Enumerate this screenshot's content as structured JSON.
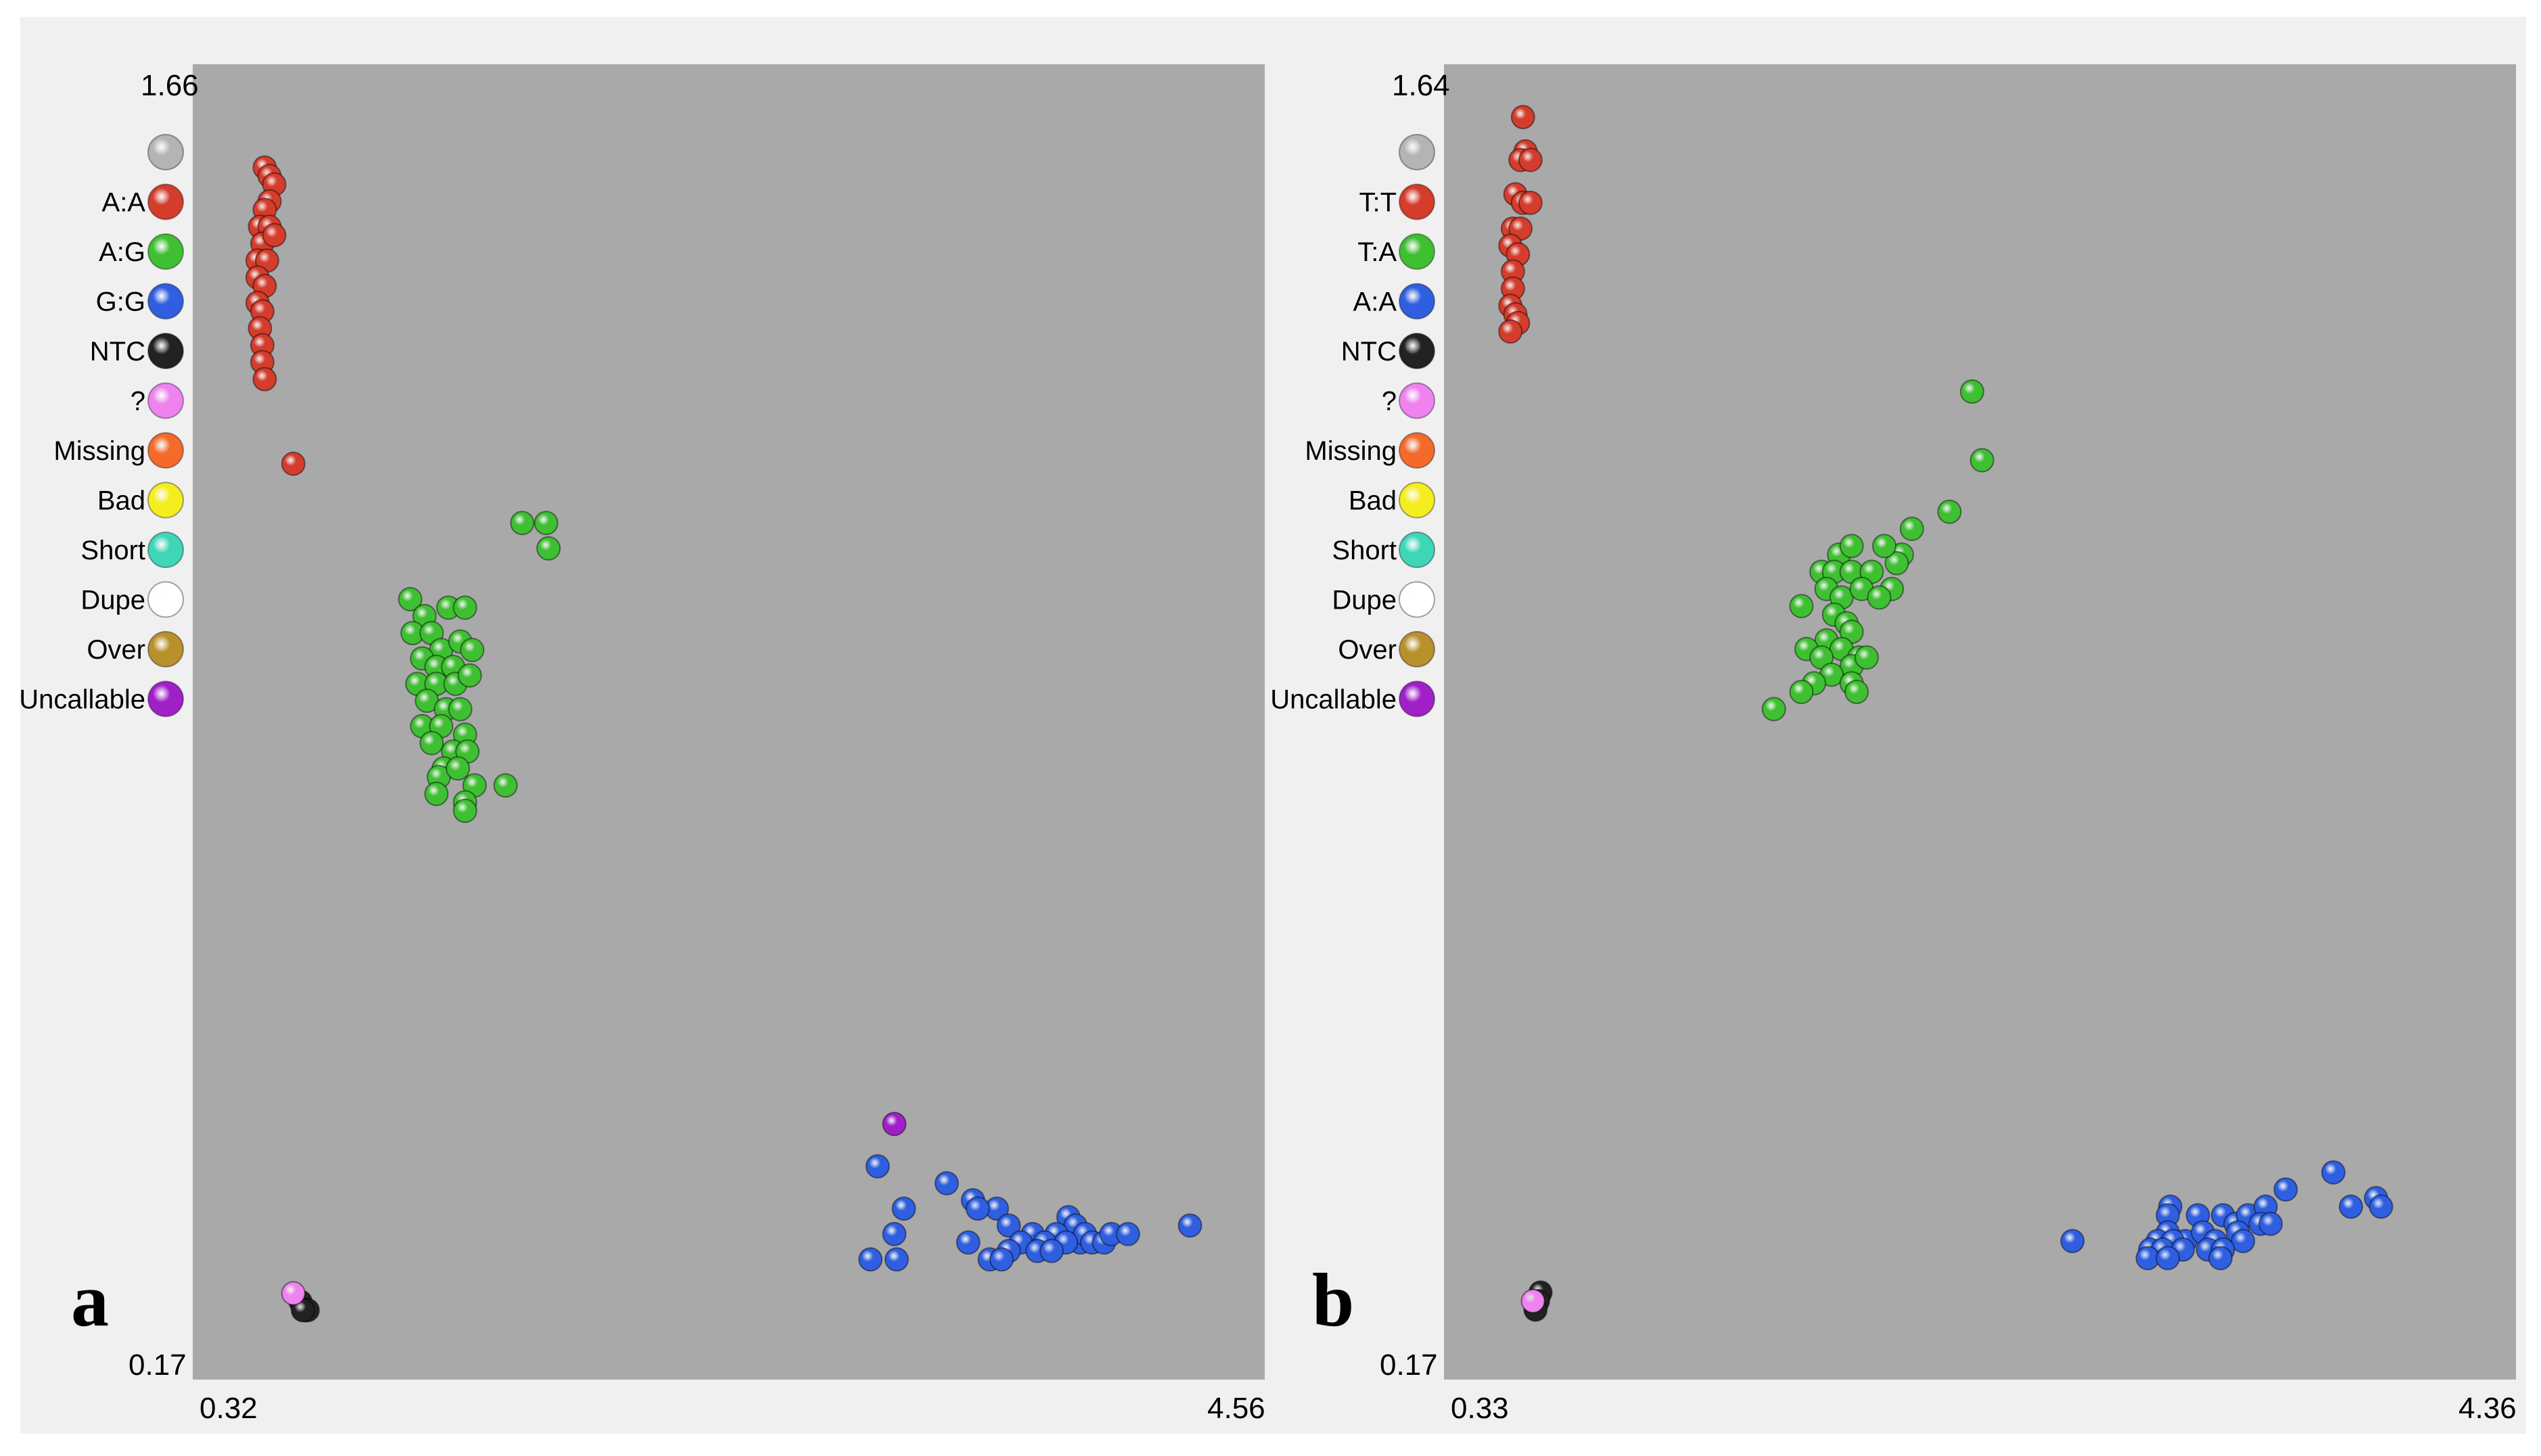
{
  "chart_data": [
    {
      "type": "scatter",
      "panel_label": "a",
      "x_range": [
        "0.32",
        "4.56"
      ],
      "y_range": [
        "0.17",
        "1.66"
      ],
      "xlim": [
        0.32,
        4.56
      ],
      "ylim": [
        0.17,
        1.66
      ],
      "legend": [
        {
          "label": "",
          "color": "#b4b4b4"
        },
        {
          "label": "A:A",
          "color": "#d43c2c"
        },
        {
          "label": "A:G",
          "color": "#3fbf32"
        },
        {
          "label": "G:G",
          "color": "#2f5fe0"
        },
        {
          "label": "NTC",
          "color": "#222222"
        },
        {
          "label": "?",
          "color": "#ee82ee"
        },
        {
          "label": "Missing",
          "color": "#f46a2a"
        },
        {
          "label": "Bad",
          "color": "#f4ee20"
        },
        {
          "label": "Short",
          "color": "#3ed6b6"
        },
        {
          "label": "Dupe",
          "color": "#ffffff"
        },
        {
          "label": "Over",
          "color": "#b8902c"
        },
        {
          "label": "Uncallable",
          "color": "#a020c8"
        }
      ],
      "series": [
        {
          "name": "A:A",
          "color": "#d43c2c",
          "points": [
            [
              0.48,
              1.57
            ],
            [
              0.5,
              1.56
            ],
            [
              0.52,
              1.55
            ],
            [
              0.5,
              1.53
            ],
            [
              0.48,
              1.52
            ],
            [
              0.46,
              1.5
            ],
            [
              0.5,
              1.5
            ],
            [
              0.47,
              1.48
            ],
            [
              0.52,
              1.49
            ],
            [
              0.45,
              1.46
            ],
            [
              0.49,
              1.46
            ],
            [
              0.45,
              1.44
            ],
            [
              0.48,
              1.43
            ],
            [
              0.45,
              1.41
            ],
            [
              0.47,
              1.4
            ],
            [
              0.46,
              1.38
            ],
            [
              0.47,
              1.36
            ],
            [
              0.47,
              1.34
            ],
            [
              0.48,
              1.32
            ],
            [
              0.6,
              1.22
            ]
          ]
        },
        {
          "name": "A:G",
          "color": "#3fbf32",
          "points": [
            [
              1.56,
              1.15
            ],
            [
              1.66,
              1.15
            ],
            [
              1.67,
              1.12
            ],
            [
              1.09,
              1.06
            ],
            [
              1.15,
              1.04
            ],
            [
              1.25,
              1.05
            ],
            [
              1.32,
              1.05
            ],
            [
              1.1,
              1.02
            ],
            [
              1.18,
              1.02
            ],
            [
              1.22,
              1.0
            ],
            [
              1.3,
              1.01
            ],
            [
              1.35,
              1.0
            ],
            [
              1.14,
              0.99
            ],
            [
              1.2,
              0.98
            ],
            [
              1.27,
              0.98
            ],
            [
              1.12,
              0.96
            ],
            [
              1.2,
              0.96
            ],
            [
              1.28,
              0.96
            ],
            [
              1.34,
              0.97
            ],
            [
              1.16,
              0.94
            ],
            [
              1.24,
              0.93
            ],
            [
              1.3,
              0.93
            ],
            [
              1.14,
              0.91
            ],
            [
              1.22,
              0.91
            ],
            [
              1.32,
              0.9
            ],
            [
              1.18,
              0.89
            ],
            [
              1.27,
              0.88
            ],
            [
              1.33,
              0.88
            ],
            [
              1.23,
              0.86
            ],
            [
              1.21,
              0.85
            ],
            [
              1.29,
              0.86
            ],
            [
              1.36,
              0.84
            ],
            [
              1.49,
              0.84
            ],
            [
              1.2,
              0.83
            ],
            [
              1.32,
              0.82
            ],
            [
              1.32,
              0.81
            ]
          ]
        },
        {
          "name": "G:G",
          "color": "#2f5fe0",
          "points": [
            [
              3.05,
              0.39
            ],
            [
              3.34,
              0.37
            ],
            [
              3.45,
              0.35
            ],
            [
              3.55,
              0.34
            ],
            [
              3.47,
              0.34
            ],
            [
              3.16,
              0.34
            ],
            [
              3.6,
              0.32
            ],
            [
              3.85,
              0.33
            ],
            [
              3.88,
              0.32
            ],
            [
              3.8,
              0.31
            ],
            [
              3.9,
              0.3
            ],
            [
              3.92,
              0.31
            ],
            [
              3.7,
              0.31
            ],
            [
              3.95,
              0.3
            ],
            [
              4.0,
              0.3
            ],
            [
              4.03,
              0.31
            ],
            [
              4.1,
              0.31
            ],
            [
              3.75,
              0.3
            ],
            [
              3.84,
              0.3
            ],
            [
              3.65,
              0.3
            ],
            [
              4.36,
              0.32
            ],
            [
              3.43,
              0.3
            ],
            [
              3.12,
              0.31
            ],
            [
              3.72,
              0.29
            ],
            [
              3.78,
              0.29
            ],
            [
              3.6,
              0.29
            ],
            [
              3.52,
              0.28
            ],
            [
              3.57,
              0.28
            ],
            [
              3.02,
              0.28
            ],
            [
              3.13,
              0.28
            ]
          ]
        },
        {
          "name": "NTC",
          "color": "#222222",
          "points": [
            [
              0.63,
              0.23
            ],
            [
              0.65,
              0.22
            ],
            [
              0.66,
              0.22
            ],
            [
              0.64,
              0.22
            ]
          ]
        },
        {
          "name": "?",
          "color": "#ee82ee",
          "points": [
            [
              0.6,
              0.24
            ]
          ]
        },
        {
          "name": "Uncallable",
          "color": "#a020c8",
          "points": [
            [
              3.12,
              0.44
            ]
          ]
        }
      ]
    },
    {
      "type": "scatter",
      "panel_label": "b",
      "x_range": [
        "0.33",
        "4.36"
      ],
      "y_range": [
        "0.17",
        "1.64"
      ],
      "xlim": [
        0.33,
        4.36
      ],
      "ylim": [
        0.17,
        1.64
      ],
      "legend": [
        {
          "label": "",
          "color": "#b4b4b4"
        },
        {
          "label": "T:T",
          "color": "#d43c2c"
        },
        {
          "label": "T:A",
          "color": "#3fbf32"
        },
        {
          "label": "A:A",
          "color": "#2f5fe0"
        },
        {
          "label": "NTC",
          "color": "#222222"
        },
        {
          "label": "?",
          "color": "#ee82ee"
        },
        {
          "label": "Missing",
          "color": "#f46a2a"
        },
        {
          "label": "Bad",
          "color": "#f4ee20"
        },
        {
          "label": "Short",
          "color": "#3ed6b6"
        },
        {
          "label": "Dupe",
          "color": "#ffffff"
        },
        {
          "label": "Over",
          "color": "#b8902c"
        },
        {
          "label": "Uncallable",
          "color": "#a020c8"
        }
      ],
      "series": [
        {
          "name": "T:T",
          "color": "#d43c2c",
          "points": [
            [
              0.51,
              1.61
            ],
            [
              0.52,
              1.57
            ],
            [
              0.5,
              1.56
            ],
            [
              0.54,
              1.56
            ],
            [
              0.48,
              1.52
            ],
            [
              0.51,
              1.51
            ],
            [
              0.54,
              1.51
            ],
            [
              0.47,
              1.48
            ],
            [
              0.5,
              1.48
            ],
            [
              0.46,
              1.46
            ],
            [
              0.49,
              1.45
            ],
            [
              0.47,
              1.43
            ],
            [
              0.47,
              1.41
            ],
            [
              0.46,
              1.39
            ],
            [
              0.48,
              1.38
            ],
            [
              0.49,
              1.37
            ],
            [
              0.46,
              1.36
            ]
          ]
        },
        {
          "name": "T:A",
          "color": "#3fbf32",
          "points": [
            [
              2.3,
              1.29
            ],
            [
              2.34,
              1.21
            ],
            [
              2.21,
              1.15
            ],
            [
              2.06,
              1.13
            ],
            [
              2.02,
              1.1
            ],
            [
              2.0,
              1.09
            ],
            [
              1.77,
              1.1
            ],
            [
              1.82,
              1.11
            ],
            [
              1.95,
              1.11
            ],
            [
              1.7,
              1.08
            ],
            [
              1.75,
              1.08
            ],
            [
              1.82,
              1.08
            ],
            [
              1.9,
              1.08
            ],
            [
              1.98,
              1.06
            ],
            [
              1.72,
              1.06
            ],
            [
              1.78,
              1.05
            ],
            [
              1.86,
              1.06
            ],
            [
              1.93,
              1.05
            ],
            [
              1.62,
              1.04
            ],
            [
              1.75,
              1.03
            ],
            [
              1.8,
              1.02
            ],
            [
              1.82,
              1.01
            ],
            [
              1.72,
              1.0
            ],
            [
              1.64,
              0.99
            ],
            [
              1.78,
              0.99
            ],
            [
              1.85,
              0.98
            ],
            [
              1.7,
              0.98
            ],
            [
              1.82,
              0.97
            ],
            [
              1.88,
              0.98
            ],
            [
              1.74,
              0.96
            ],
            [
              1.82,
              0.95
            ],
            [
              1.67,
              0.95
            ],
            [
              1.62,
              0.94
            ],
            [
              1.84,
              0.94
            ],
            [
              1.51,
              0.92
            ]
          ]
        },
        {
          "name": "A:A",
          "color": "#2f5fe0",
          "points": [
            [
              2.7,
              0.3
            ],
            [
              3.09,
              0.34
            ],
            [
              3.08,
              0.33
            ],
            [
              3.2,
              0.33
            ],
            [
              3.3,
              0.33
            ],
            [
              3.35,
              0.32
            ],
            [
              3.4,
              0.33
            ],
            [
              3.47,
              0.34
            ],
            [
              3.55,
              0.36
            ],
            [
              3.36,
              0.31
            ],
            [
              3.45,
              0.32
            ],
            [
              3.49,
              0.32
            ],
            [
              3.08,
              0.31
            ],
            [
              3.15,
              0.3
            ],
            [
              3.22,
              0.31
            ],
            [
              3.04,
              0.3
            ],
            [
              3.1,
              0.3
            ],
            [
              3.27,
              0.3
            ],
            [
              3.38,
              0.3
            ],
            [
              3.01,
              0.29
            ],
            [
              3.06,
              0.29
            ],
            [
              3.14,
              0.29
            ],
            [
              3.24,
              0.29
            ],
            [
              3.3,
              0.29
            ],
            [
              3.0,
              0.28
            ],
            [
              3.08,
              0.28
            ],
            [
              3.29,
              0.28
            ],
            [
              3.74,
              0.38
            ],
            [
              3.91,
              0.35
            ],
            [
              3.93,
              0.34
            ],
            [
              3.81,
              0.34
            ]
          ]
        },
        {
          "name": "NTC",
          "color": "#222222",
          "points": [
            [
              0.58,
              0.24
            ],
            [
              0.57,
              0.23
            ],
            [
              0.56,
              0.22
            ]
          ]
        },
        {
          "name": "?",
          "color": "#ee82ee",
          "points": [
            [
              0.55,
              0.23
            ]
          ]
        }
      ]
    }
  ]
}
